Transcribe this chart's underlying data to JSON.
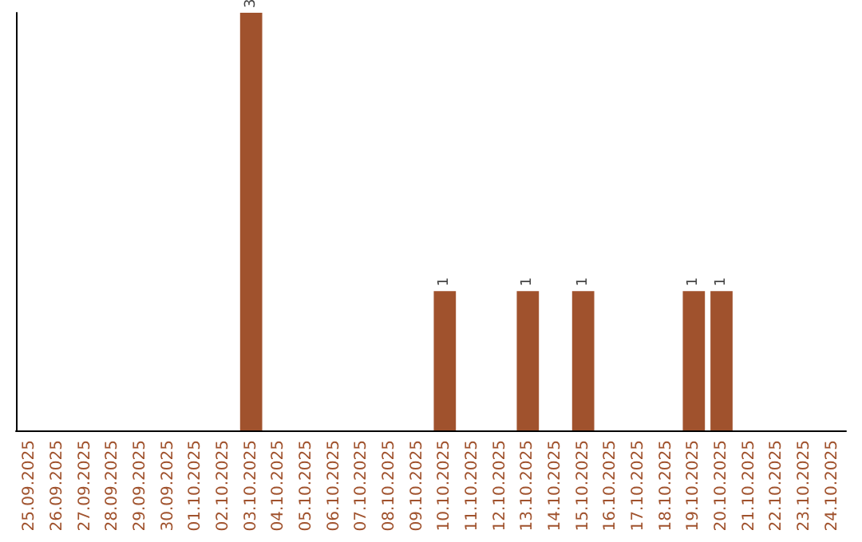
{
  "chart_data": {
    "type": "bar",
    "categories": [
      "25.09.2025",
      "26.09.2025",
      "27.09.2025",
      "28.09.2025",
      "29.09.2025",
      "30.09.2025",
      "01.10.2025",
      "02.10.2025",
      "03.10.2025",
      "04.10.2025",
      "05.10.2025",
      "06.10.2025",
      "07.10.2025",
      "08.10.2025",
      "09.10.2025",
      "10.10.2025",
      "11.10.2025",
      "12.10.2025",
      "13.10.2025",
      "14.10.2025",
      "15.10.2025",
      "16.10.2025",
      "17.10.2025",
      "18.10.2025",
      "19.10.2025",
      "20.10.2025",
      "21.10.2025",
      "22.10.2025",
      "23.10.2025",
      "24.10.2025"
    ],
    "values": [
      0,
      0,
      0,
      0,
      0,
      0,
      0,
      0,
      3,
      0,
      0,
      0,
      0,
      0,
      0,
      1,
      0,
      0,
      1,
      0,
      1,
      0,
      0,
      0,
      1,
      1,
      0,
      0,
      0,
      0
    ],
    "value_labels": [
      null,
      null,
      null,
      null,
      null,
      null,
      null,
      null,
      "3",
      null,
      null,
      null,
      null,
      null,
      null,
      "1",
      null,
      null,
      "1",
      null,
      "1",
      null,
      null,
      null,
      "1",
      "1",
      null,
      null,
      null,
      null
    ],
    "color": "#a0522d",
    "tick_labels": "x"
  }
}
